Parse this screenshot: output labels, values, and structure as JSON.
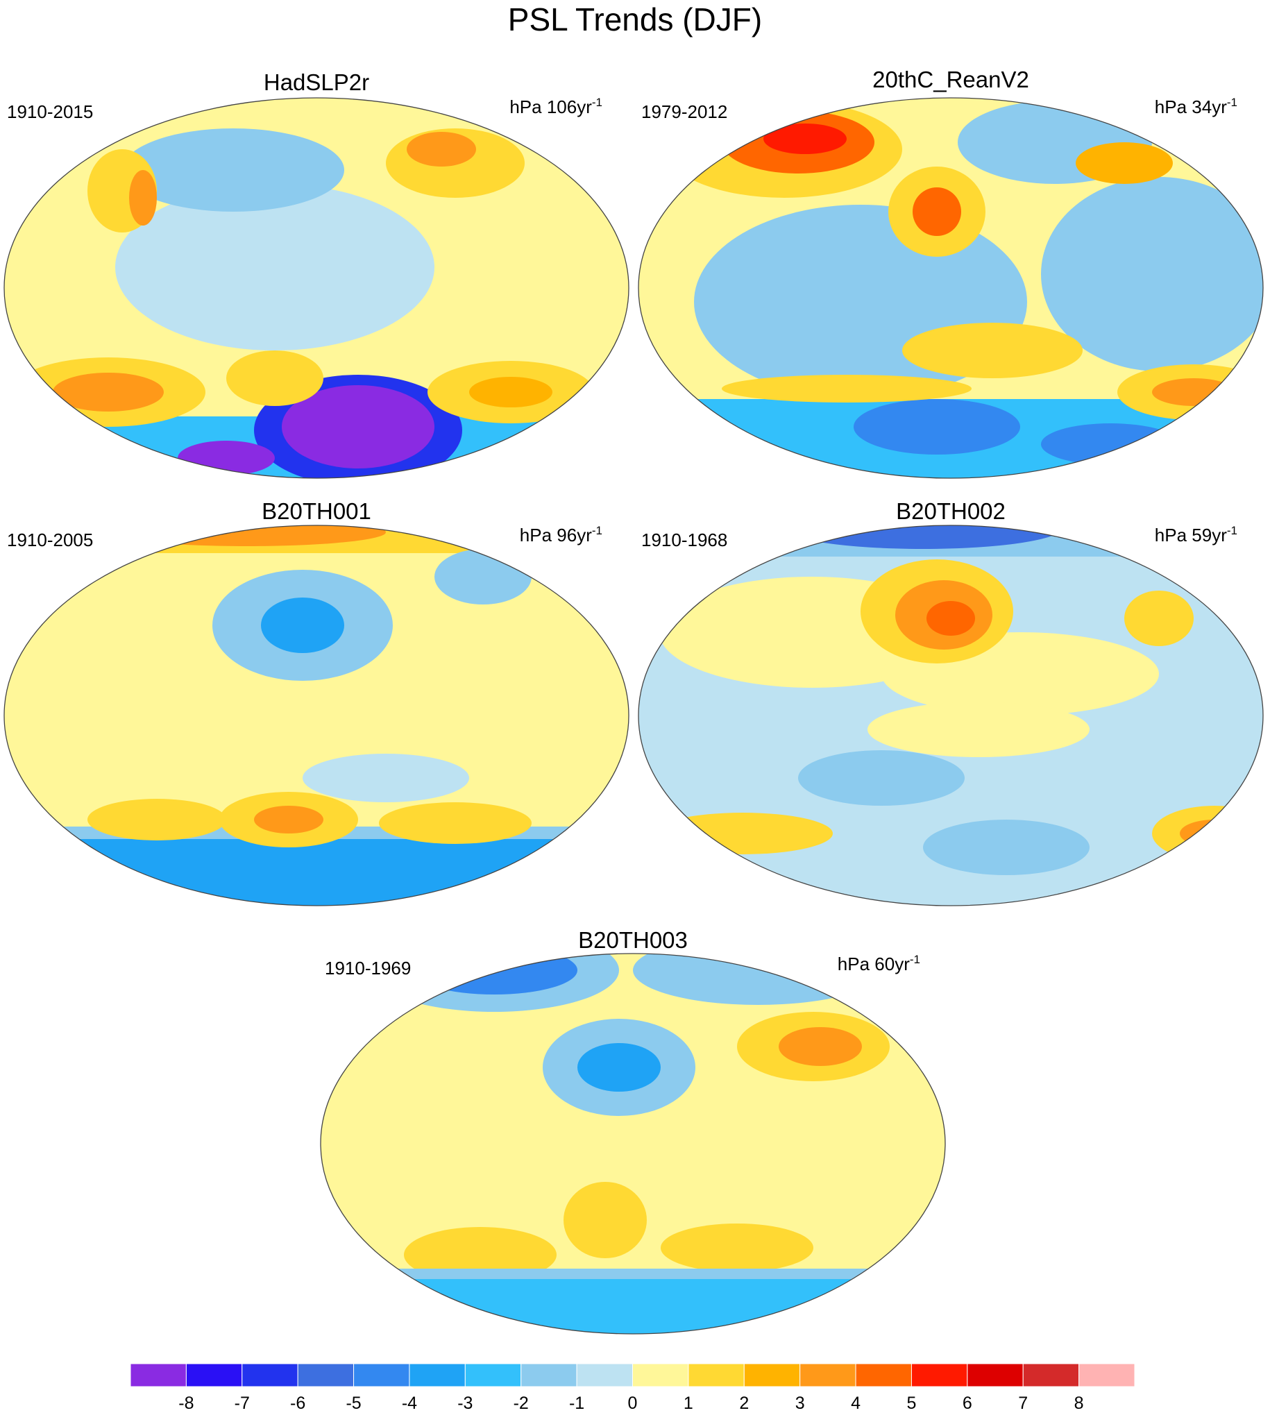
{
  "title": "PSL Trends (DJF)",
  "panels": [
    {
      "title": "HadSLP2r",
      "period": "1910-2015",
      "units": "hPa 106yr",
      "units_exponent": "-1"
    },
    {
      "title": "20thC_ReanV2",
      "period": "1979-2012",
      "units": "hPa 34yr",
      "units_exponent": "-1"
    },
    {
      "title": "B20TH001",
      "period": "1910-2005",
      "units": "hPa 96yr",
      "units_exponent": "-1"
    },
    {
      "title": "B20TH002",
      "period": "1910-1968",
      "units": "hPa 59yr",
      "units_exponent": "-1"
    },
    {
      "title": "B20TH003",
      "period": "1910-1969",
      "units": "hPa 60yr",
      "units_exponent": "-1"
    }
  ],
  "colorbar": {
    "colors": [
      "#8a2be2",
      "#2a10f5",
      "#2233ee",
      "#3d6fe0",
      "#3388f0",
      "#1fa3f5",
      "#33c0fb",
      "#8ccbee",
      "#bde2f2",
      "#fff799",
      "#ffd933",
      "#ffb300",
      "#ff9919",
      "#ff6600",
      "#ff1a00",
      "#dd0000",
      "#d42a2a",
      "#ffb3b3"
    ],
    "labels": [
      -8,
      -7,
      -6,
      -5,
      -4,
      -3,
      -2,
      -1,
      0,
      1,
      2,
      3,
      4,
      5,
      6,
      7,
      8
    ]
  }
}
